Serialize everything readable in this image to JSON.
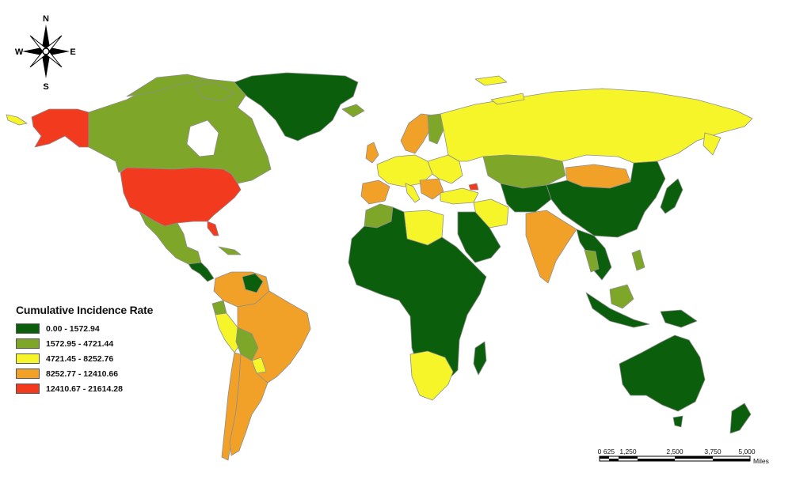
{
  "compass": {
    "n": "N",
    "s": "S",
    "e": "E",
    "w": "W"
  },
  "legend": {
    "title": "Cumulative Incidence Rate",
    "classes": [
      {
        "label": "0.00 - 1572.94",
        "color": "#0b5e0b"
      },
      {
        "label": "1572.95 - 4721.44",
        "color": "#7ea628"
      },
      {
        "label": "4721.45 - 8252.76",
        "color": "#f5f52a"
      },
      {
        "label": "8252.77 - 12410.66",
        "color": "#f2a128"
      },
      {
        "label": "12410.67 - 21614.28",
        "color": "#f23a1e"
      }
    ]
  },
  "scale_bar": {
    "ticks": [
      "0",
      "625",
      "1,250",
      "2,500",
      "3,750",
      "5,000"
    ],
    "unit": "Miles"
  },
  "colors": {
    "land_dark_green": "#0b5e0b",
    "land_light_green": "#7ea628",
    "land_yellow": "#f5f52a",
    "land_orange": "#f2a128",
    "land_red": "#f23a1e",
    "border": "#b9b9b9"
  }
}
